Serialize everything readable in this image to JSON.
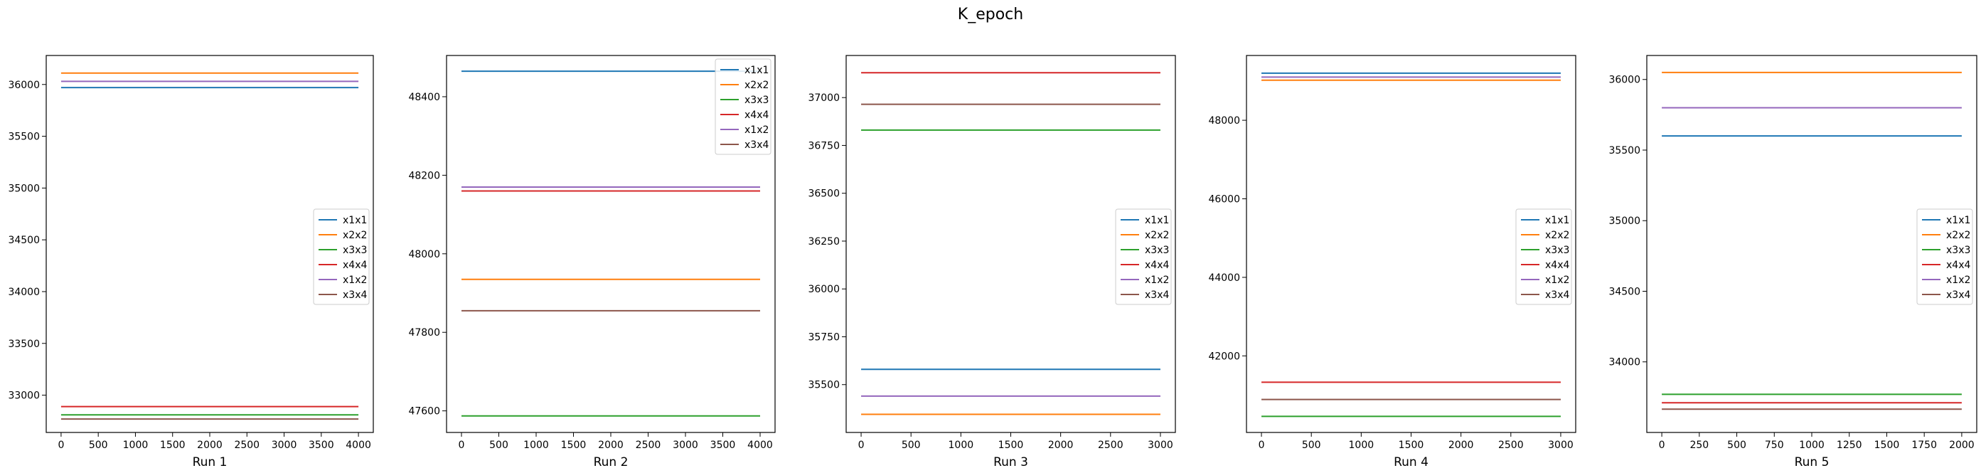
{
  "figure_title": "K_epoch",
  "colors": {
    "x1x1": "#1f77b4",
    "x2x2": "#ff7f0e",
    "x3x3": "#2ca02c",
    "x4x4": "#d62728",
    "x1x2": "#9467bd",
    "x3x4": "#8c564b"
  },
  "chart_data": [
    {
      "type": "line",
      "title": "",
      "xlabel": "Run 1",
      "ylabel": "",
      "xlim": [
        -200,
        4200
      ],
      "ylim": [
        32640,
        36280
      ],
      "xticks": [
        0,
        500,
        1000,
        1500,
        2000,
        2500,
        3000,
        3500,
        4000
      ],
      "xtick_labels": [
        "0",
        "500",
        "1000",
        "1500",
        "2000",
        "2500",
        "3000",
        "3500",
        "4000"
      ],
      "yticks": [
        33000,
        33500,
        34000,
        34500,
        35000,
        35500,
        36000
      ],
      "ytick_labels": [
        "33000",
        "33500",
        "34000",
        "34500",
        "35000",
        "35500",
        "36000"
      ],
      "legend_position": "center-right",
      "grid": false,
      "series": [
        {
          "name": "x1x1",
          "x": [
            0,
            4000
          ],
          "y": [
            35970,
            35970
          ]
        },
        {
          "name": "x2x2",
          "x": [
            0,
            4000
          ],
          "y": [
            36110,
            36110
          ]
        },
        {
          "name": "x3x3",
          "x": [
            0,
            4000
          ],
          "y": [
            32810,
            32810
          ]
        },
        {
          "name": "x4x4",
          "x": [
            0,
            4000
          ],
          "y": [
            32890,
            32890
          ]
        },
        {
          "name": "x1x2",
          "x": [
            0,
            4000
          ],
          "y": [
            36030,
            36030
          ]
        },
        {
          "name": "x3x4",
          "x": [
            0,
            4000
          ],
          "y": [
            32770,
            32770
          ]
        }
      ]
    },
    {
      "type": "line",
      "title": "",
      "xlabel": "Run 2",
      "ylabel": "",
      "xlim": [
        -200,
        4200
      ],
      "ylim": [
        47545,
        48505
      ],
      "xticks": [
        0,
        500,
        1000,
        1500,
        2000,
        2500,
        3000,
        3500,
        4000
      ],
      "xtick_labels": [
        "0",
        "500",
        "1000",
        "1500",
        "2000",
        "2500",
        "3000",
        "3500",
        "4000"
      ],
      "yticks": [
        47600,
        47800,
        48000,
        48200,
        48400
      ],
      "ytick_labels": [
        "47600",
        "47800",
        "48000",
        "48200",
        "48400"
      ],
      "legend_position": "upper-right",
      "grid": false,
      "series": [
        {
          "name": "x1x1",
          "x": [
            0,
            4000
          ],
          "y": [
            48465,
            48465
          ]
        },
        {
          "name": "x2x2",
          "x": [
            0,
            4000
          ],
          "y": [
            47935,
            47935
          ]
        },
        {
          "name": "x3x3",
          "x": [
            0,
            4000
          ],
          "y": [
            47587,
            47587
          ]
        },
        {
          "name": "x4x4",
          "x": [
            0,
            4000
          ],
          "y": [
            48160,
            48160
          ]
        },
        {
          "name": "x1x2",
          "x": [
            0,
            4000
          ],
          "y": [
            48170,
            48170
          ]
        },
        {
          "name": "x3x4",
          "x": [
            0,
            4000
          ],
          "y": [
            47855,
            47855
          ]
        }
      ]
    },
    {
      "type": "line",
      "title": "",
      "xlabel": "Run 3",
      "ylabel": "",
      "xlim": [
        -150,
        3150
      ],
      "ylim": [
        35250,
        37220
      ],
      "xticks": [
        0,
        500,
        1000,
        1500,
        2000,
        2500,
        3000
      ],
      "xtick_labels": [
        "0",
        "500",
        "1000",
        "1500",
        "2000",
        "2500",
        "3000"
      ],
      "yticks": [
        35500,
        35750,
        36000,
        36250,
        36500,
        36750,
        37000
      ],
      "ytick_labels": [
        "35500",
        "35750",
        "36000",
        "36250",
        "36500",
        "36750",
        "37000"
      ],
      "legend_position": "center-right",
      "grid": false,
      "series": [
        {
          "name": "x1x1",
          "x": [
            0,
            3000
          ],
          "y": [
            35580,
            35580
          ]
        },
        {
          "name": "x2x2",
          "x": [
            0,
            3000
          ],
          "y": [
            35345,
            35345
          ]
        },
        {
          "name": "x3x3",
          "x": [
            0,
            3000
          ],
          "y": [
            36830,
            36830
          ]
        },
        {
          "name": "x4x4",
          "x": [
            0,
            3000
          ],
          "y": [
            37130,
            37130
          ]
        },
        {
          "name": "x1x2",
          "x": [
            0,
            3000
          ],
          "y": [
            35440,
            35440
          ]
        },
        {
          "name": "x3x4",
          "x": [
            0,
            3000
          ],
          "y": [
            36965,
            36965
          ]
        }
      ]
    },
    {
      "type": "line",
      "title": "",
      "xlabel": "Run 4",
      "ylabel": "",
      "xlim": [
        -150,
        3150
      ],
      "ylim": [
        40050,
        49650
      ],
      "xticks": [
        0,
        500,
        1000,
        1500,
        2000,
        2500,
        3000
      ],
      "xtick_labels": [
        "0",
        "500",
        "1000",
        "1500",
        "2000",
        "2500",
        "3000"
      ],
      "yticks": [
        42000,
        44000,
        46000,
        48000
      ],
      "ytick_labels": [
        "42000",
        "44000",
        "46000",
        "48000"
      ],
      "legend_position": "center-right",
      "grid": false,
      "series": [
        {
          "name": "x1x1",
          "x": [
            0,
            3000
          ],
          "y": [
            49200,
            49200
          ]
        },
        {
          "name": "x2x2",
          "x": [
            0,
            3000
          ],
          "y": [
            49020,
            49020
          ]
        },
        {
          "name": "x3x3",
          "x": [
            0,
            3000
          ],
          "y": [
            40460,
            40460
          ]
        },
        {
          "name": "x4x4",
          "x": [
            0,
            3000
          ],
          "y": [
            41330,
            41330
          ]
        },
        {
          "name": "x1x2",
          "x": [
            0,
            3000
          ],
          "y": [
            49100,
            49100
          ]
        },
        {
          "name": "x3x4",
          "x": [
            0,
            3000
          ],
          "y": [
            40890,
            40890
          ]
        }
      ]
    },
    {
      "type": "line",
      "title": "",
      "xlabel": "Run 5",
      "ylabel": "",
      "xlim": [
        -100,
        2100
      ],
      "ylim": [
        33500,
        36170
      ],
      "xticks": [
        0,
        250,
        500,
        750,
        1000,
        1250,
        1500,
        1750,
        2000
      ],
      "xtick_labels": [
        "0",
        "250",
        "500",
        "750",
        "1000",
        "1250",
        "1500",
        "1750",
        "2000"
      ],
      "yticks": [
        34000,
        34500,
        35000,
        35500,
        36000
      ],
      "ytick_labels": [
        "34000",
        "34500",
        "35000",
        "35500",
        "36000"
      ],
      "legend_position": "center-right",
      "grid": false,
      "series": [
        {
          "name": "x1x1",
          "x": [
            0,
            2000
          ],
          "y": [
            35600,
            35600
          ]
        },
        {
          "name": "x2x2",
          "x": [
            0,
            2000
          ],
          "y": [
            36050,
            36050
          ]
        },
        {
          "name": "x3x3",
          "x": [
            0,
            2000
          ],
          "y": [
            33770,
            33770
          ]
        },
        {
          "name": "x4x4",
          "x": [
            0,
            2000
          ],
          "y": [
            33710,
            33710
          ]
        },
        {
          "name": "x1x2",
          "x": [
            0,
            2000
          ],
          "y": [
            35800,
            35800
          ]
        },
        {
          "name": "x3x4",
          "x": [
            0,
            2000
          ],
          "y": [
            33665,
            33665
          ]
        }
      ]
    }
  ]
}
